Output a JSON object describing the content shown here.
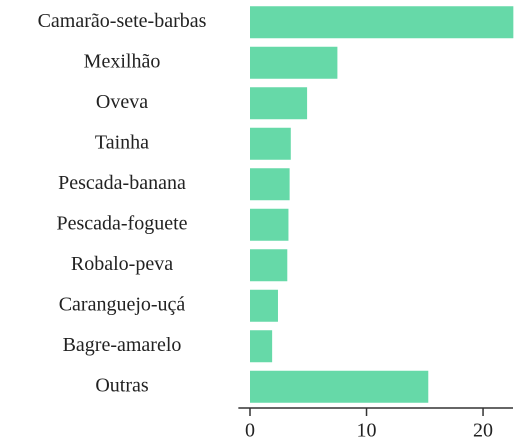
{
  "chart_data": {
    "type": "barh",
    "categories": [
      "Camarão-sete-barbas",
      "Mexilhão",
      "Oveva",
      "Tainha",
      "Pescada-banana",
      "Pescada-foguete",
      "Robalo-peva",
      "Caranguejo-uçá",
      "Bagre-amarelo",
      "Outras"
    ],
    "values": [
      22.6,
      7.5,
      4.9,
      3.5,
      3.4,
      3.3,
      3.2,
      2.4,
      1.9,
      15.3
    ],
    "color": "#66d9a8",
    "xlim": [
      -1,
      23
    ],
    "xticks": [
      0,
      10,
      20
    ],
    "grid": false
  }
}
